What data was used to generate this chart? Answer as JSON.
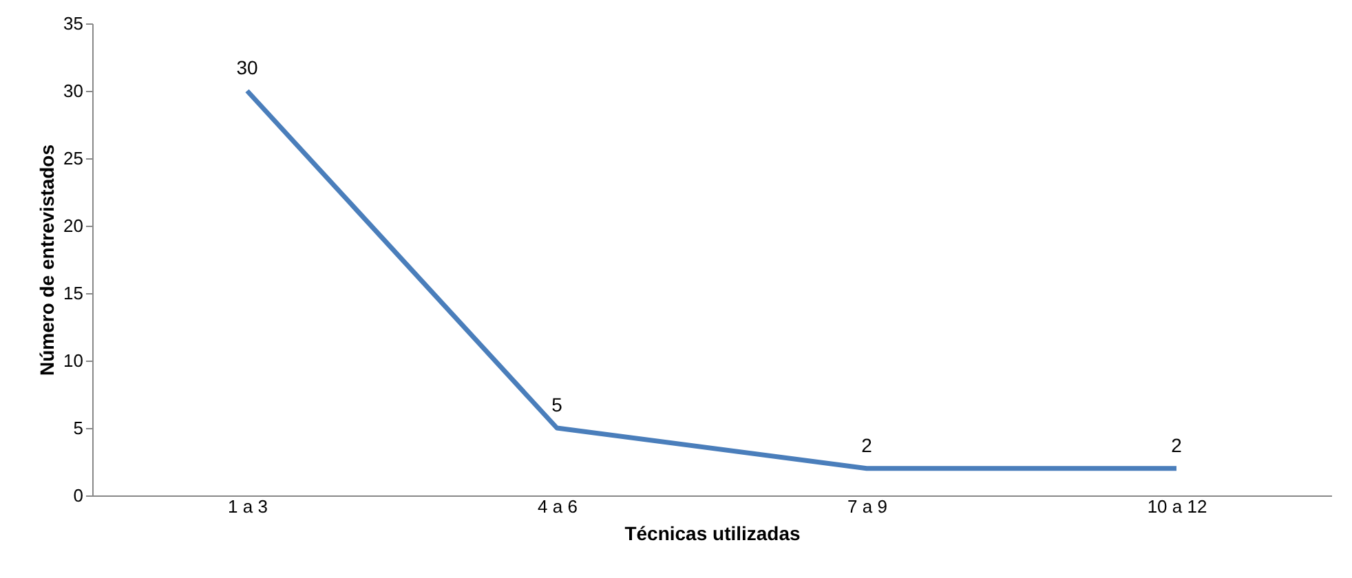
{
  "chart_data": {
    "type": "line",
    "xlabel": "Técnicas utilizadas",
    "ylabel": "Número de entrevistados",
    "categories": [
      "1 a 3",
      "4 a 6",
      "7 a 9",
      "10 a 12"
    ],
    "series": [
      {
        "color": "#4a7ebb",
        "values": [
          30,
          5,
          2,
          2
        ]
      }
    ],
    "ylim": [
      0,
      35
    ],
    "yticks": [
      0,
      5,
      10,
      15,
      20,
      25,
      30,
      35
    ],
    "data_labels": true
  }
}
